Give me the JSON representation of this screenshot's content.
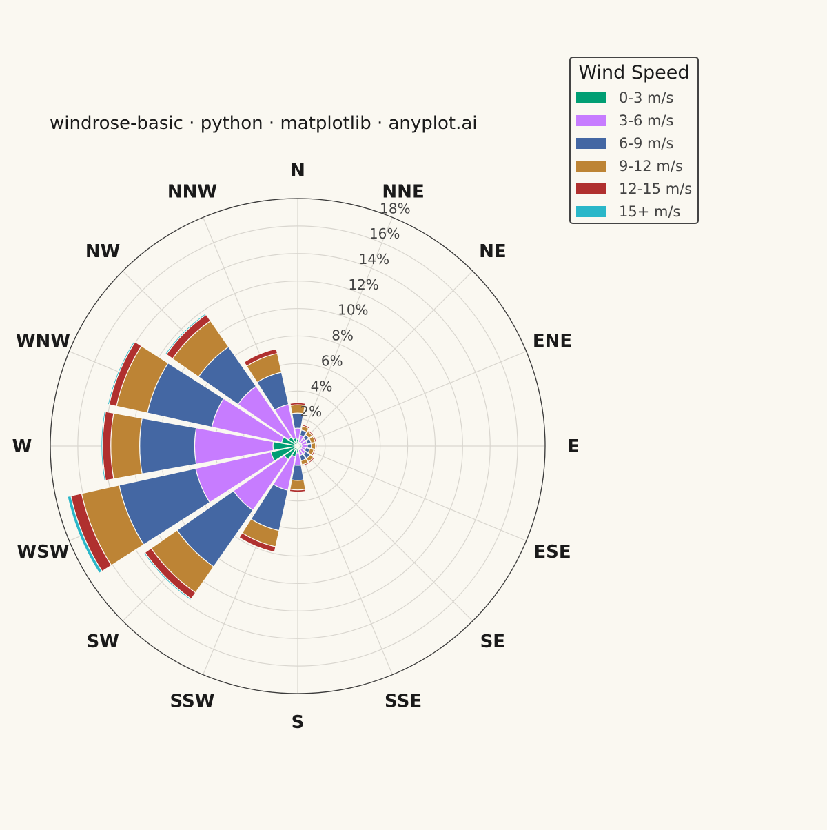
{
  "title": "windrose-basic · python · matplotlib · anyplot.ai",
  "legend": {
    "title": "Wind Speed",
    "items": [
      {
        "label": "0-3 m/s",
        "color": "#009E73"
      },
      {
        "label": "3-6 m/s",
        "color": "#C77CFF"
      },
      {
        "label": "6-9 m/s",
        "color": "#4467A3"
      },
      {
        "label": "9-12 m/s",
        "color": "#BD8435"
      },
      {
        "label": "12-15 m/s",
        "color": "#B0302F"
      },
      {
        "label": "15+ m/s",
        "color": "#2AB7C9"
      }
    ]
  },
  "chart_data": {
    "type": "windrose",
    "title": "windrose-basic · python · matplotlib · anyplot.ai",
    "directions": [
      "N",
      "NNE",
      "NE",
      "ENE",
      "E",
      "ESE",
      "SE",
      "SSE",
      "S",
      "SSW",
      "SW",
      "WSW",
      "W",
      "WNW",
      "NW",
      "NNW"
    ],
    "radial_ticks": [
      2,
      4,
      6,
      8,
      10,
      12,
      14,
      16,
      18
    ],
    "radial_tick_labels": [
      "2%",
      "4%",
      "6%",
      "8%",
      "10%",
      "12%",
      "14%",
      "16%",
      "18%"
    ],
    "rmax": 18,
    "unit": "%",
    "grid": true,
    "legend_position": "top-right",
    "series": [
      {
        "name": "0-3 m/s",
        "color": "#009E73",
        "values": [
          0.5,
          0.3,
          0.3,
          0.3,
          0.3,
          0.3,
          0.3,
          0.3,
          0.5,
          0.8,
          1.2,
          2.0,
          1.8,
          1.2,
          0.8,
          0.6
        ]
      },
      {
        "name": "3-6 m/s",
        "color": "#C77CFF",
        "values": [
          0.8,
          0.5,
          0.4,
          0.4,
          0.4,
          0.3,
          0.4,
          0.4,
          0.9,
          2.5,
          4.5,
          5.6,
          5.7,
          5.2,
          4.5,
          2.5
        ]
      },
      {
        "name": "6-9 m/s",
        "color": "#4467A3",
        "values": [
          1.1,
          0.4,
          0.3,
          0.3,
          0.3,
          0.3,
          0.4,
          0.4,
          1.1,
          3.0,
          5.0,
          5.7,
          4.0,
          4.8,
          3.5,
          2.4
        ]
      },
      {
        "name": "9-12 m/s",
        "color": "#BD8435",
        "values": [
          0.6,
          0.3,
          0.3,
          0.3,
          0.3,
          0.3,
          0.3,
          0.3,
          0.7,
          1.2,
          2.3,
          2.8,
          2.1,
          2.3,
          2.3,
          1.4
        ]
      },
      {
        "name": "12-15 m/s",
        "color": "#B0302F",
        "values": [
          0.15,
          0.1,
          0.1,
          0.1,
          0.1,
          0.1,
          0.1,
          0.1,
          0.15,
          0.4,
          0.55,
          0.8,
          0.6,
          0.55,
          0.55,
          0.35
        ]
      },
      {
        "name": "15+ m/s",
        "color": "#2AB7C9",
        "values": [
          0.0,
          0.0,
          0.0,
          0.0,
          0.0,
          0.0,
          0.0,
          0.0,
          0.0,
          0.05,
          0.1,
          0.25,
          0.1,
          0.1,
          0.1,
          0.05
        ]
      }
    ]
  }
}
